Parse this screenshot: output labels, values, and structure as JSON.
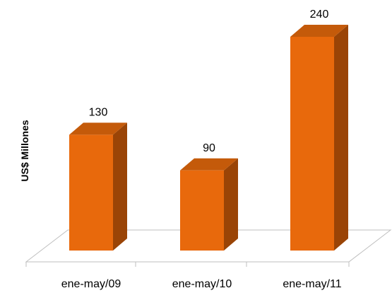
{
  "chart_data": {
    "type": "bar",
    "title": "",
    "xlabel": "",
    "ylabel": "US$ Millones",
    "categories": [
      "ene-may/09",
      "ene-may/10",
      "ene-may/11"
    ],
    "values": [
      130,
      90,
      240
    ],
    "ylim": [
      0,
      260
    ],
    "grid": false,
    "legend": "none",
    "colors": {
      "bar_front": "#E8690C",
      "bar_top": "#C45A0A",
      "bar_side": "#9A4406",
      "floor_line": "#BFBFBF"
    }
  }
}
